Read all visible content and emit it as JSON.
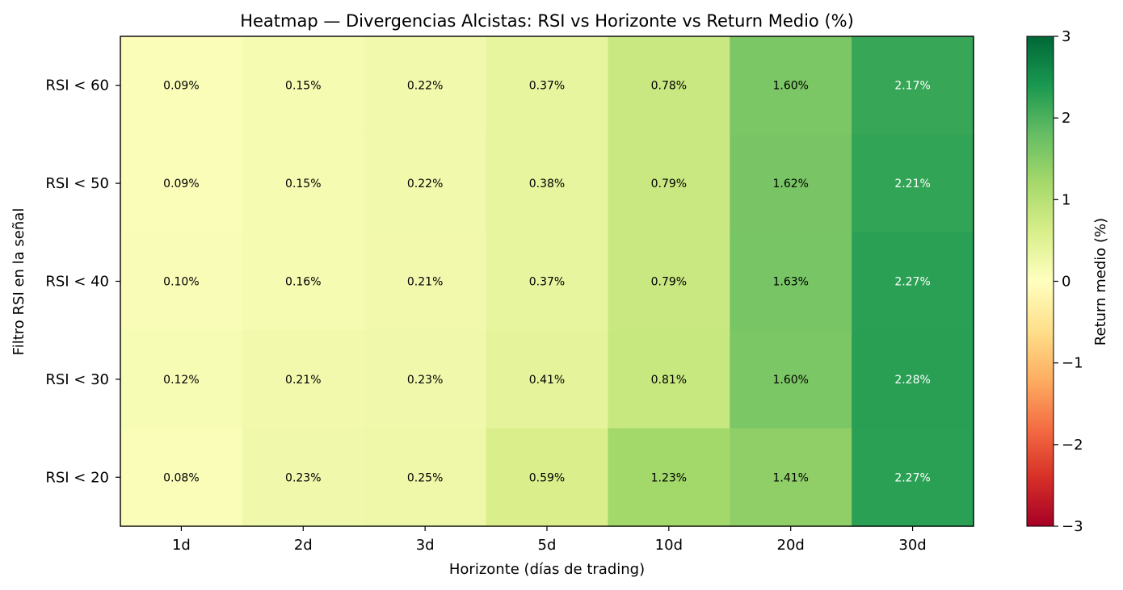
{
  "chart_data": {
    "type": "heatmap",
    "title": "Heatmap — Divergencias Alcistas: RSI vs Horizonte vs Return Medio (%)",
    "xlabel": "Horizonte (días de trading)",
    "ylabel": "Filtro RSI en la señal",
    "x_categories": [
      "1d",
      "2d",
      "3d",
      "5d",
      "10d",
      "20d",
      "30d"
    ],
    "y_categories": [
      "RSI < 60",
      "RSI < 50",
      "RSI < 40",
      "RSI < 30",
      "RSI < 20"
    ],
    "values": [
      [
        0.09,
        0.15,
        0.22,
        0.37,
        0.78,
        1.6,
        2.17
      ],
      [
        0.09,
        0.15,
        0.22,
        0.38,
        0.79,
        1.62,
        2.21
      ],
      [
        0.1,
        0.16,
        0.21,
        0.37,
        0.79,
        1.63,
        2.27
      ],
      [
        0.12,
        0.21,
        0.23,
        0.41,
        0.81,
        1.6,
        2.28
      ],
      [
        0.08,
        0.23,
        0.25,
        0.59,
        1.23,
        1.41,
        2.27
      ]
    ],
    "cell_labels": [
      [
        "0.09%",
        "0.15%",
        "0.22%",
        "0.37%",
        "0.78%",
        "1.60%",
        "2.17%"
      ],
      [
        "0.09%",
        "0.15%",
        "0.22%",
        "0.38%",
        "0.79%",
        "1.62%",
        "2.21%"
      ],
      [
        "0.10%",
        "0.16%",
        "0.21%",
        "0.37%",
        "0.79%",
        "1.63%",
        "2.27%"
      ],
      [
        "0.12%",
        "0.21%",
        "0.23%",
        "0.41%",
        "0.81%",
        "1.60%",
        "2.28%"
      ],
      [
        "0.08%",
        "0.23%",
        "0.25%",
        "0.59%",
        "1.23%",
        "1.41%",
        "2.27%"
      ]
    ],
    "colormap": "RdYlGn",
    "colormap_colors": [
      "#a50026",
      "#d73027",
      "#f46d43",
      "#fdae61",
      "#fee08b",
      "#ffffbf",
      "#d9ef8b",
      "#a6d96a",
      "#66bd63",
      "#1a9850",
      "#006837"
    ],
    "vmin": -3,
    "vmax": 3,
    "colorbar": {
      "label": "Return medio (%)",
      "ticks": [
        "3",
        "2",
        "1",
        "0",
        "−1",
        "−2",
        "−3"
      ],
      "tick_values": [
        3,
        2,
        1,
        0,
        -1,
        -2,
        -3
      ]
    },
    "grid": false,
    "legend": "none"
  }
}
